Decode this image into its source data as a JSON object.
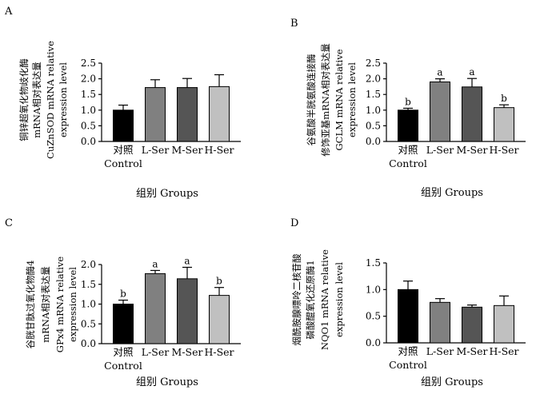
{
  "chart_data": [
    {
      "type": "bar",
      "panel": "A",
      "categories": [
        [
          "对照",
          "Control"
        ],
        [
          "L-Ser"
        ],
        [
          "M-Ser"
        ],
        [
          "H-Ser"
        ]
      ],
      "values": [
        1.0,
        1.72,
        1.72,
        1.75
      ],
      "errors": [
        0.16,
        0.25,
        0.29,
        0.38
      ],
      "significance": [
        "",
        "",
        "",
        ""
      ],
      "bar_colors": [
        "#000000",
        "#808080",
        "#555555",
        "#c0c0c0"
      ],
      "ylabel_lines": [
        "铜锌超氧化物歧化酶",
        "mRNA相对表达量",
        "CuZnSOD mRNA relative",
        "expression level"
      ],
      "xlabel": "组别 Groups",
      "yticks": [
        "0.0",
        "0.5",
        "1.0",
        "1.5",
        "2.0",
        "2.5"
      ],
      "ylim": [
        0,
        2.5
      ],
      "grid": false
    },
    {
      "type": "bar",
      "panel": "B",
      "categories": [
        [
          "对照",
          "Control"
        ],
        [
          "L-Ser"
        ],
        [
          "M-Ser"
        ],
        [
          "H-Ser"
        ]
      ],
      "values": [
        1.0,
        1.9,
        1.74,
        1.08
      ],
      "errors": [
        0.06,
        0.1,
        0.27,
        0.09
      ],
      "significance": [
        "b",
        "a",
        "a",
        "b"
      ],
      "bar_colors": [
        "#000000",
        "#808080",
        "#555555",
        "#c0c0c0"
      ],
      "ylabel_lines": [
        "谷氨酸半胱氨酸连接酶",
        "修饰亚基mRNA相对表达量",
        "GCLM mRNA relative",
        "expression level"
      ],
      "xlabel": "组别 Groups",
      "yticks": [
        "0.0",
        "0.5",
        "1.0",
        "1.5",
        "2.0",
        "2.5"
      ],
      "ylim": [
        0,
        2.5
      ],
      "grid": false
    },
    {
      "type": "bar",
      "panel": "C",
      "categories": [
        [
          "对照",
          "Control"
        ],
        [
          "L-Ser"
        ],
        [
          "M-Ser"
        ],
        [
          "H-Ser"
        ]
      ],
      "values": [
        1.0,
        1.77,
        1.64,
        1.22
      ],
      "errors": [
        0.1,
        0.08,
        0.29,
        0.2
      ],
      "significance": [
        "b",
        "a",
        "a",
        "b"
      ],
      "bar_colors": [
        "#000000",
        "#808080",
        "#555555",
        "#c0c0c0"
      ],
      "ylabel_lines": [
        "谷胱甘肽过氧化物酶4",
        "mRNA相对表达量",
        "GPx4 mRNA relative",
        "expression level"
      ],
      "xlabel": "组别 Groups",
      "yticks": [
        "0.0",
        "0.5",
        "1.0",
        "1.5",
        "2.0"
      ],
      "ylim": [
        0,
        2.0
      ],
      "grid": false
    },
    {
      "type": "bar",
      "panel": "D",
      "categories": [
        [
          "对照",
          "Control"
        ],
        [
          "L-Ser"
        ],
        [
          "M-Ser"
        ],
        [
          "H-Ser"
        ]
      ],
      "values": [
        1.0,
        0.76,
        0.67,
        0.7
      ],
      "errors": [
        0.16,
        0.07,
        0.04,
        0.18
      ],
      "significance": [
        "",
        "",
        "",
        ""
      ],
      "bar_colors": [
        "#000000",
        "#808080",
        "#555555",
        "#c0c0c0"
      ],
      "ylabel_lines": [
        "烟酰胺腺嘌呤二核苷酸",
        "磷酸醌氧化还原酶1",
        "NQO1 mRNA relative",
        "expression level"
      ],
      "xlabel": "组别 Groups",
      "yticks": [
        "0.0",
        "0.5",
        "1.0",
        "1.5"
      ],
      "ylim": [
        0,
        1.5
      ],
      "grid": false
    }
  ]
}
